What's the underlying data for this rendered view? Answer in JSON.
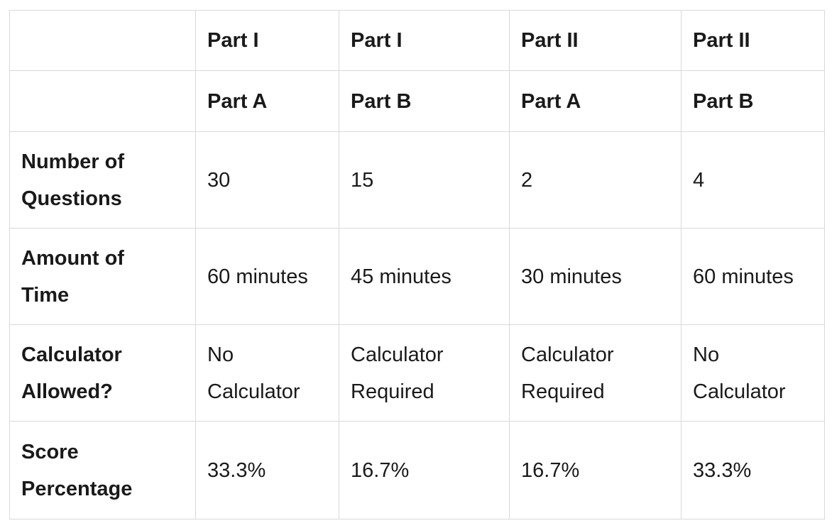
{
  "header_rows": [
    [
      "",
      "Part I",
      "Part I",
      "Part II",
      "Part II"
    ],
    [
      "",
      "Part A",
      "Part B",
      "Part A",
      "Part B"
    ]
  ],
  "rows": [
    {
      "label": [
        "Number of",
        "Questions"
      ],
      "cells": [
        [
          "30"
        ],
        [
          "15"
        ],
        [
          "2"
        ],
        [
          "4"
        ]
      ]
    },
    {
      "label": [
        "Amount of",
        "Time"
      ],
      "cells": [
        [
          "60 minutes"
        ],
        [
          "45 minutes"
        ],
        [
          "30 minutes"
        ],
        [
          "60 minutes"
        ]
      ]
    },
    {
      "label": [
        "Calculator",
        "Allowed?"
      ],
      "cells": [
        [
          "No",
          "Calculator"
        ],
        [
          "Calculator",
          "Required"
        ],
        [
          "Calculator",
          "Required"
        ],
        [
          "No",
          "Calculator"
        ]
      ]
    },
    {
      "label": [
        "Score",
        "Percentage"
      ],
      "cells": [
        [
          "33.3%"
        ],
        [
          "16.7%"
        ],
        [
          "16.7%"
        ],
        [
          "33.3%"
        ]
      ]
    }
  ]
}
